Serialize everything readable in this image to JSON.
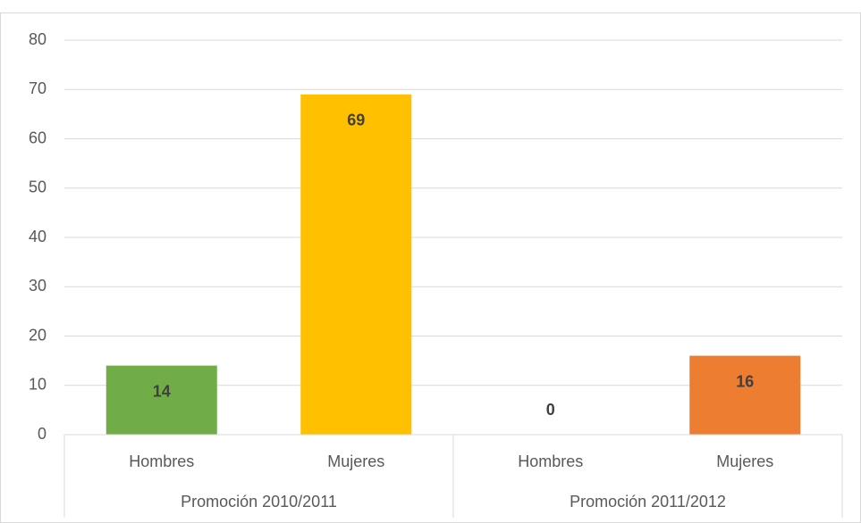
{
  "chart_data": {
    "type": "bar",
    "categories": [
      "Hombres",
      "Mujeres",
      "Hombres",
      "Mujeres"
    ],
    "groups": [
      "Promoción 2010/2011",
      "Promoción 2011/2012"
    ],
    "values": [
      14,
      69,
      0,
      16
    ],
    "colors": [
      "#70ad47",
      "#ffc000",
      "#4472c4",
      "#ed7d31"
    ],
    "ylim": [
      0,
      80
    ],
    "yticks": [
      0,
      10,
      20,
      30,
      40,
      50,
      60,
      70,
      80
    ],
    "grid": true
  }
}
